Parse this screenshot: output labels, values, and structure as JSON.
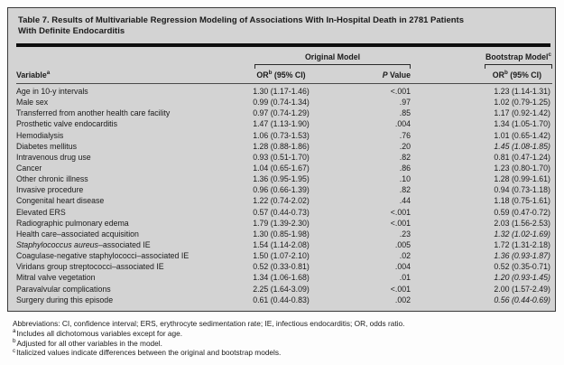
{
  "title_line1": "Table 7. Results of Multivariable Regression Modeling of Associations With In-Hospital Death in 2781 Patients",
  "title_line2": "With Definite Endocarditis",
  "header": {
    "spanner_original": "Original Model",
    "spanner_bootstrap": "Bootstrap Model",
    "spanner_bootstrap_sup": "c",
    "variable": "Variable",
    "variable_sup": "a",
    "or_label": "OR",
    "or_sup": "b",
    "or_rest": " (95% CI)",
    "p_italic": "P",
    "p_rest": " Value"
  },
  "rows": [
    {
      "variable": "Age in 10-y intervals",
      "or": "1.30 (1.17-1.46)",
      "p": "<.001",
      "boot": "1.23 (1.14-1.31)"
    },
    {
      "variable": "Male sex",
      "or": "0.99 (0.74-1.34)",
      "p": ".97",
      "boot": "1.02 (0.79-1.25)"
    },
    {
      "variable": "Transferred from another health care facility",
      "or": "0.97 (0.74-1.29)",
      "p": ".85",
      "boot": "1.17 (0.92-1.42)"
    },
    {
      "variable": "Prosthetic valve endocarditis",
      "or": "1.47 (1.13-1.90)",
      "p": ".004",
      "boot": "1.34 (1.05-1.70)"
    },
    {
      "variable": "Hemodialysis",
      "or": "1.06 (0.73-1.53)",
      "p": ".76",
      "boot": "1.01 (0.65-1.42)"
    },
    {
      "variable": "Diabetes mellitus",
      "or": "1.28 (0.88-1.86)",
      "p": ".20",
      "boot": "1.45 (1.08-1.85)",
      "diff": true
    },
    {
      "variable": "Intravenous drug use",
      "or": "0.93 (0.51-1.70)",
      "p": ".82",
      "boot": "0.81 (0.47-1.24)"
    },
    {
      "variable": "Cancer",
      "or": "1.04 (0.65-1.67)",
      "p": ".86",
      "boot": "1.23 (0.80-1.70)"
    },
    {
      "variable": "Other chronic illness",
      "or": "1.36 (0.95-1.95)",
      "p": ".10",
      "boot": "1.28 (0.99-1.61)"
    },
    {
      "variable": "Invasive procedure",
      "or": "0.96 (0.66-1.39)",
      "p": ".82",
      "boot": "0.94 (0.73-1.18)"
    },
    {
      "variable": "Congenital heart disease",
      "or": "1.22 (0.74-2.02)",
      "p": ".44",
      "boot": "1.18 (0.75-1.61)"
    },
    {
      "variable": "Elevated ERS",
      "or": "0.57 (0.44-0.73)",
      "p": "<.001",
      "boot": "0.59 (0.47-0.72)"
    },
    {
      "variable": "Radiographic pulmonary edema",
      "or": "1.79 (1.39-2.30)",
      "p": "<.001",
      "boot": "2.03 (1.56-2.53)"
    },
    {
      "variable": "Health care–associated acquisition",
      "or": "1.30 (0.85-1.98)",
      "p": ".23",
      "boot": "1.32 (1.02-1.69)",
      "diff": true
    },
    {
      "variable_italic": "Staphylococcus aureus",
      "variable": "–associated IE",
      "or": "1.54 (1.14-2.08)",
      "p": ".005",
      "boot": "1.72 (1.31-2.18)"
    },
    {
      "variable": "Coagulase-negative staphylococci–associated IE",
      "or": "1.50 (1.07-2.10)",
      "p": ".02",
      "boot": "1.36 (0.93-1.87)",
      "diff": true
    },
    {
      "variable": "Viridans group streptococci–associated IE",
      "or": "0.52 (0.33-0.81)",
      "p": ".004",
      "boot": "0.52 (0.35-0.71)"
    },
    {
      "variable": "Mitral valve vegetation",
      "or": "1.34 (1.06-1.68)",
      "p": ".01",
      "boot": "1.20 (0.93-1.45)",
      "diff": true
    },
    {
      "variable": "Paravalvular complications",
      "or": "2.25 (1.64-3.09)",
      "p": "<.001",
      "boot": "2.00 (1.57-2.49)"
    },
    {
      "variable": "Surgery during this episode",
      "or": "0.61 (0.44-0.83)",
      "p": ".002",
      "boot": "0.56 (0.44-0.69)",
      "diff": true
    }
  ],
  "footnotes": {
    "abbreviations": "Abbreviations: CI, confidence interval; ERS, erythrocyte sedimentation rate; IE, infectious endocarditis; OR, odds ratio.",
    "a_sup": "a",
    "a": "Includes all dichotomous variables except for age.",
    "b_sup": "b",
    "b": "Adjusted for all other variables in the model.",
    "c_sup": "c",
    "c": "Italicized values indicate differences between the original and bootstrap models."
  },
  "colors": {
    "table_background": "#d3d3d3",
    "page_background": "#fdfdfd",
    "text": "#1a1a1a"
  }
}
